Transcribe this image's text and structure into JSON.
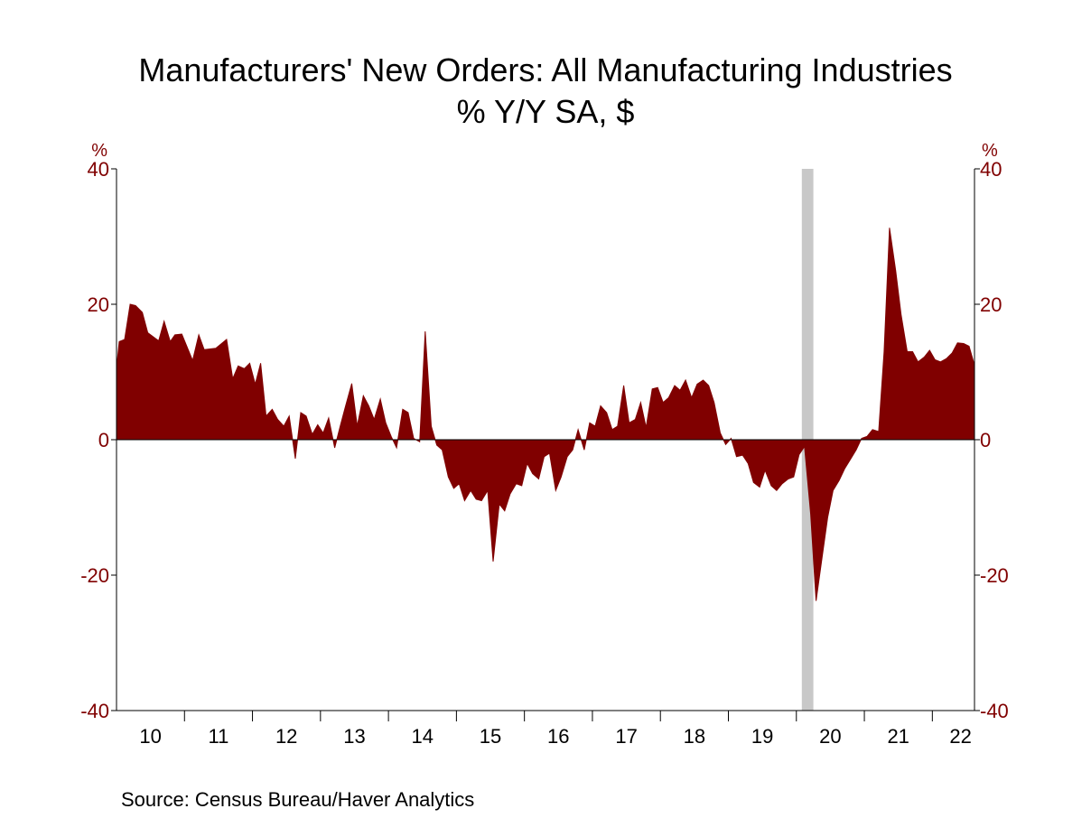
{
  "chart_data": {
    "type": "area",
    "title": "Manufacturers' New Orders: All Manufacturing Industries",
    "subtitle": "% Y/Y   SA, $",
    "ylabel_left": "%",
    "ylabel_right": "%",
    "ylim": [
      -40,
      40
    ],
    "yticks": [
      40,
      20,
      0,
      -20,
      -40
    ],
    "xlim": [
      2010.0,
      2022.62
    ],
    "year_labels": [
      "10",
      "11",
      "12",
      "13",
      "14",
      "15",
      "16",
      "17",
      "18",
      "19",
      "20",
      "21",
      "22"
    ],
    "recession_shading": [
      [
        2020.08,
        2020.25
      ]
    ],
    "series": [
      {
        "color": "#800000",
        "points": [
          [
            2010.0,
            10.5
          ],
          [
            2010.04,
            14.5
          ],
          [
            2010.12,
            14.8
          ],
          [
            2010.2,
            20.0
          ],
          [
            2010.28,
            19.8
          ],
          [
            2010.38,
            18.8
          ],
          [
            2010.46,
            15.8
          ],
          [
            2010.62,
            14.6
          ],
          [
            2010.7,
            17.5
          ],
          [
            2010.79,
            14.5
          ],
          [
            2010.86,
            15.5
          ],
          [
            2010.96,
            15.6
          ],
          [
            2011.12,
            11.7
          ],
          [
            2011.21,
            15.5
          ],
          [
            2011.29,
            13.3
          ],
          [
            2011.46,
            13.5
          ],
          [
            2011.62,
            14.8
          ],
          [
            2011.71,
            9.0
          ],
          [
            2011.79,
            10.9
          ],
          [
            2011.88,
            10.5
          ],
          [
            2011.96,
            11.3
          ],
          [
            2012.04,
            8.2
          ],
          [
            2012.12,
            11.3
          ],
          [
            2012.2,
            3.5
          ],
          [
            2012.29,
            4.5
          ],
          [
            2012.37,
            3.0
          ],
          [
            2012.46,
            2.0
          ],
          [
            2012.54,
            3.5
          ],
          [
            2012.63,
            -2.8
          ],
          [
            2012.71,
            4.0
          ],
          [
            2012.79,
            3.5
          ],
          [
            2012.88,
            0.8
          ],
          [
            2012.96,
            2.2
          ],
          [
            2013.04,
            1.0
          ],
          [
            2013.12,
            3.2
          ],
          [
            2013.21,
            -1.2
          ],
          [
            2013.29,
            2.0
          ],
          [
            2013.37,
            5.0
          ],
          [
            2013.46,
            8.3
          ],
          [
            2013.54,
            2.0
          ],
          [
            2013.63,
            6.5
          ],
          [
            2013.71,
            5.0
          ],
          [
            2013.79,
            3.0
          ],
          [
            2013.88,
            6.0
          ],
          [
            2013.96,
            2.5
          ],
          [
            2014.04,
            0.5
          ],
          [
            2014.12,
            -1.2
          ],
          [
            2014.21,
            4.5
          ],
          [
            2014.29,
            4.0
          ],
          [
            2014.37,
            0.2
          ],
          [
            2014.46,
            -0.3
          ],
          [
            2014.54,
            16.0
          ],
          [
            2014.63,
            2.0
          ],
          [
            2014.71,
            -0.8
          ],
          [
            2014.79,
            -1.5
          ],
          [
            2014.88,
            -5.5
          ],
          [
            2014.96,
            -7.2
          ],
          [
            2015.04,
            -6.5
          ],
          [
            2015.12,
            -9.0
          ],
          [
            2015.21,
            -7.5
          ],
          [
            2015.29,
            -8.8
          ],
          [
            2015.37,
            -9.0
          ],
          [
            2015.46,
            -7.5
          ],
          [
            2015.54,
            -18.0
          ],
          [
            2015.63,
            -9.5
          ],
          [
            2015.71,
            -10.5
          ],
          [
            2015.79,
            -8.0
          ],
          [
            2015.88,
            -6.5
          ],
          [
            2015.96,
            -6.8
          ],
          [
            2016.04,
            -3.5
          ],
          [
            2016.12,
            -5.0
          ],
          [
            2016.21,
            -5.8
          ],
          [
            2016.29,
            -2.5
          ],
          [
            2016.37,
            -2.0
          ],
          [
            2016.46,
            -7.5
          ],
          [
            2016.54,
            -5.5
          ],
          [
            2016.63,
            -2.5
          ],
          [
            2016.71,
            -1.5
          ],
          [
            2016.79,
            1.5
          ],
          [
            2016.88,
            -1.5
          ],
          [
            2016.96,
            2.5
          ],
          [
            2017.04,
            2.0
          ],
          [
            2017.12,
            5.0
          ],
          [
            2017.21,
            4.0
          ],
          [
            2017.29,
            1.5
          ],
          [
            2017.37,
            2.0
          ],
          [
            2017.46,
            8.0
          ],
          [
            2017.54,
            2.5
          ],
          [
            2017.63,
            3.0
          ],
          [
            2017.71,
            5.5
          ],
          [
            2017.79,
            1.8
          ],
          [
            2017.88,
            7.5
          ],
          [
            2017.96,
            7.7
          ],
          [
            2018.04,
            5.5
          ],
          [
            2018.12,
            6.2
          ],
          [
            2018.21,
            8.0
          ],
          [
            2018.29,
            7.3
          ],
          [
            2018.37,
            8.8
          ],
          [
            2018.46,
            6.2
          ],
          [
            2018.54,
            8.2
          ],
          [
            2018.63,
            8.8
          ],
          [
            2018.71,
            8.0
          ],
          [
            2018.79,
            5.5
          ],
          [
            2018.88,
            1.0
          ],
          [
            2018.96,
            -0.7
          ],
          [
            2019.04,
            0.2
          ],
          [
            2019.12,
            -2.5
          ],
          [
            2019.21,
            -2.3
          ],
          [
            2019.29,
            -3.5
          ],
          [
            2019.37,
            -6.3
          ],
          [
            2019.46,
            -7.0
          ],
          [
            2019.54,
            -4.5
          ],
          [
            2019.63,
            -6.8
          ],
          [
            2019.71,
            -7.5
          ],
          [
            2019.79,
            -6.5
          ],
          [
            2019.88,
            -5.8
          ],
          [
            2019.96,
            -5.5
          ],
          [
            2020.04,
            -2.2
          ],
          [
            2020.12,
            -1.0
          ],
          [
            2020.21,
            -11.0
          ],
          [
            2020.29,
            -23.8
          ],
          [
            2020.37,
            -18.0
          ],
          [
            2020.46,
            -11.5
          ],
          [
            2020.54,
            -7.5
          ],
          [
            2020.63,
            -6.0
          ],
          [
            2020.71,
            -4.3
          ],
          [
            2020.79,
            -3.0
          ],
          [
            2020.88,
            -1.5
          ],
          [
            2020.96,
            0.2
          ],
          [
            2021.04,
            0.5
          ],
          [
            2021.12,
            1.5
          ],
          [
            2021.21,
            1.2
          ],
          [
            2021.29,
            13.0
          ],
          [
            2021.37,
            31.3
          ],
          [
            2021.46,
            25.0
          ],
          [
            2021.54,
            18.5
          ],
          [
            2021.63,
            13.0
          ],
          [
            2021.71,
            13.0
          ],
          [
            2021.79,
            11.5
          ],
          [
            2021.88,
            12.2
          ],
          [
            2021.96,
            13.2
          ],
          [
            2022.04,
            11.8
          ],
          [
            2022.12,
            11.5
          ],
          [
            2022.21,
            12.0
          ],
          [
            2022.29,
            12.8
          ],
          [
            2022.37,
            14.3
          ],
          [
            2022.46,
            14.2
          ],
          [
            2022.54,
            13.8
          ],
          [
            2022.62,
            11.0
          ]
        ]
      }
    ]
  },
  "source": "Source:  Census Bureau/Haver Analytics"
}
